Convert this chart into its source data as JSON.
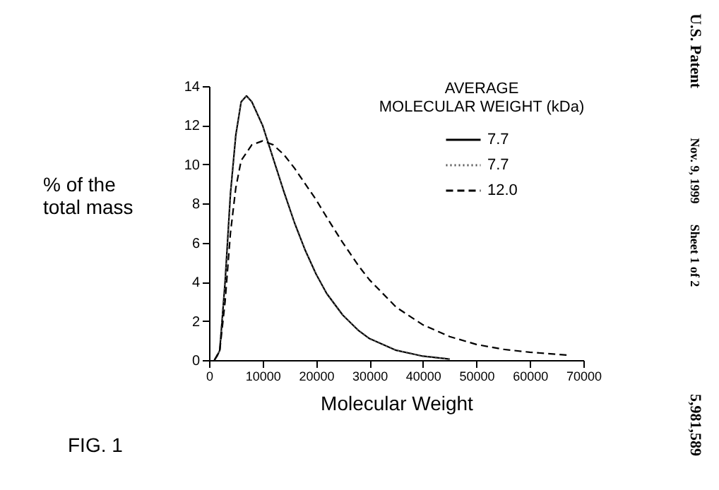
{
  "chart_data": {
    "type": "line",
    "xlabel": "Molecular Weight",
    "ylabel": "% of the\ntotal mass",
    "legend_title": "AVERAGE\nMOLECULAR WEIGHT (kDa)",
    "x": [
      1000,
      1500,
      2000,
      3000,
      4000,
      5000,
      6000,
      7000,
      8000,
      10000,
      12000,
      14000,
      16000,
      18000,
      20000,
      22000,
      25000,
      28000,
      30000,
      35000,
      40000,
      45000
    ],
    "series": [
      {
        "name": "7.7",
        "color": "#000000",
        "line_style": "solid",
        "values": [
          0,
          0.2,
          0.5,
          4,
          8.5,
          11.5,
          13.2,
          13.5,
          13.2,
          12,
          10.3,
          8.6,
          7,
          5.6,
          4.4,
          3.4,
          2.3,
          1.5,
          1.1,
          0.5,
          0.2,
          0.05
        ]
      },
      {
        "name": "7.7",
        "color": "#555555",
        "line_style": "dotted",
        "values": [
          0,
          0.2,
          0.5,
          4,
          8.5,
          11.5,
          13.2,
          13.5,
          13.2,
          12,
          10.3,
          8.6,
          7,
          5.6,
          4.4,
          3.4,
          2.3,
          1.5,
          1.1,
          0.5,
          0.2,
          0.05
        ]
      },
      {
        "name": "12.0",
        "color": "#000000",
        "line_style": "dashed",
        "x": [
          1000,
          2000,
          3000,
          4000,
          5000,
          6000,
          8000,
          10000,
          12000,
          14000,
          16000,
          18000,
          20000,
          22000,
          25000,
          28000,
          30000,
          35000,
          40000,
          45000,
          50000,
          55000,
          60000,
          65000,
          67000
        ],
        "values": [
          0,
          0.5,
          3,
          6.5,
          8.8,
          10.2,
          11.0,
          11.2,
          11,
          10.5,
          9.8,
          9,
          8.2,
          7.3,
          6,
          4.8,
          4.1,
          2.7,
          1.8,
          1.2,
          0.8,
          0.55,
          0.4,
          0.3,
          0.25
        ]
      }
    ],
    "xlim": [
      0,
      70000
    ],
    "xticks": [
      0,
      10000,
      20000,
      30000,
      40000,
      50000,
      60000,
      70000
    ],
    "ylim": [
      0,
      14
    ],
    "yticks": [
      0,
      2,
      4,
      6,
      8,
      10,
      12,
      14
    ],
    "grid": false,
    "legend": "top right",
    "marker": "none",
    "annotations": [
      "FIG. 1",
      "U.S. Patent",
      "Nov. 9, 1999",
      "Sheet 1 of 2",
      "5,981,589"
    ]
  }
}
